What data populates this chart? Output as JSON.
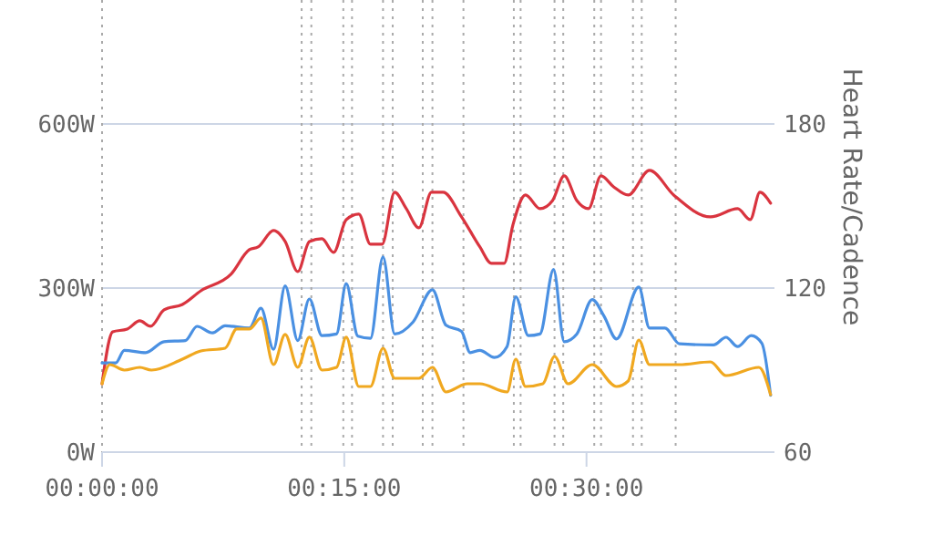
{
  "chart_data": {
    "type": "line",
    "y2label": "Heart Rate/Cadence",
    "xlim": [
      0,
      0.694
    ],
    "xticks": [
      {
        "value": 0,
        "label": "00:00:00"
      },
      {
        "value": 0.25,
        "label": "00:15:00"
      },
      {
        "value": 0.5,
        "label": "00:30:00"
      }
    ],
    "ylim": [
      0,
      826.7
    ],
    "yticks": [
      {
        "value": 0,
        "label": "0W"
      },
      {
        "value": 300,
        "label": "300W"
      },
      {
        "value": 600,
        "label": "600W"
      }
    ],
    "y2lim": [
      60,
      225.3
    ],
    "y2ticks": [
      60,
      120,
      180
    ],
    "grid": "y",
    "marker": "none",
    "line_style": "solid",
    "series": [
      {
        "color": "#d9343f",
        "axis": "y2",
        "x": [
          0,
          0.011,
          0.026,
          0.039,
          0.05,
          0.064,
          0.083,
          0.102,
          0.133,
          0.152,
          0.161,
          0.177,
          0.189,
          0.202,
          0.214,
          0.227,
          0.239,
          0.252,
          0.265,
          0.277,
          0.289,
          0.302,
          0.314,
          0.327,
          0.34,
          0.352,
          0.371,
          0.39,
          0.402,
          0.415,
          0.424,
          0.437,
          0.452,
          0.465,
          0.477,
          0.49,
          0.502,
          0.515,
          0.528,
          0.543,
          0.565,
          0.59,
          0.628,
          0.656,
          0.669,
          0.679,
          0.69
        ],
        "values": [
          85,
          104,
          105,
          108,
          106,
          112,
          114,
          119,
          125,
          134,
          135,
          141,
          137,
          126,
          137,
          138,
          133,
          145,
          147,
          136,
          136,
          155,
          149,
          142,
          155,
          155,
          146,
          135,
          129,
          129,
          143,
          154,
          149,
          152,
          161,
          152,
          149,
          161,
          157,
          154,
          163,
          154,
          146,
          149,
          145,
          155,
          151
        ]
      },
      {
        "color": "#4a90e2",
        "x": [
          0,
          0.014,
          0.023,
          0.045,
          0.064,
          0.086,
          0.098,
          0.114,
          0.127,
          0.152,
          0.164,
          0.177,
          0.189,
          0.202,
          0.214,
          0.227,
          0.242,
          0.252,
          0.264,
          0.277,
          0.29,
          0.302,
          0.321,
          0.341,
          0.355,
          0.371,
          0.38,
          0.39,
          0.405,
          0.418,
          0.427,
          0.44,
          0.452,
          0.466,
          0.477,
          0.49,
          0.506,
          0.518,
          0.531,
          0.554,
          0.565,
          0.581,
          0.596,
          0.631,
          0.644,
          0.656,
          0.67,
          0.681,
          0.69
        ],
        "values": [
          163,
          163,
          186,
          182,
          202,
          204,
          230,
          218,
          231,
          227,
          263,
          188,
          304,
          204,
          280,
          213,
          216,
          308,
          212,
          208,
          357,
          216,
          238,
          297,
          232,
          221,
          182,
          186,
          173,
          193,
          284,
          213,
          216,
          334,
          202,
          216,
          279,
          249,
          207,
          302,
          227,
          227,
          198,
          196,
          210,
          193,
          213,
          199,
          104
        ]
      },
      {
        "color": "#f0a820",
        "axis": "y2",
        "x": [
          0,
          0.008,
          0.023,
          0.039,
          0.051,
          0.083,
          0.102,
          0.127,
          0.139,
          0.152,
          0.164,
          0.177,
          0.189,
          0.202,
          0.214,
          0.227,
          0.242,
          0.252,
          0.265,
          0.277,
          0.29,
          0.302,
          0.327,
          0.341,
          0.355,
          0.377,
          0.39,
          0.418,
          0.427,
          0.437,
          0.455,
          0.467,
          0.481,
          0.506,
          0.531,
          0.543,
          0.554,
          0.565,
          0.596,
          0.628,
          0.644,
          0.678,
          0.69
        ],
        "values": [
          85,
          92,
          90,
          91,
          90,
          94,
          97,
          98,
          105,
          105,
          109,
          92,
          103,
          91,
          102,
          90,
          91,
          102,
          84,
          84,
          98,
          87,
          87,
          91,
          82,
          85,
          85,
          82,
          94,
          84,
          85,
          95,
          85,
          92,
          84,
          86,
          101,
          92,
          92,
          93,
          88,
          91,
          81
        ]
      }
    ],
    "ref_lines": [
      {
        "axis": "x",
        "value": 0,
        "color": "#aaaaaa",
        "line_style": "dotted"
      },
      {
        "axis": "x",
        "value": 0.206,
        "color": "#aaaaaa",
        "line_style": "dotted"
      },
      {
        "axis": "x",
        "value": 0.216,
        "color": "#aaaaaa",
        "line_style": "dotted"
      },
      {
        "axis": "x",
        "value": 0.249,
        "color": "#aaaaaa",
        "line_style": "dotted"
      },
      {
        "axis": "x",
        "value": 0.258,
        "color": "#aaaaaa",
        "line_style": "dotted"
      },
      {
        "axis": "x",
        "value": 0.29,
        "color": "#aaaaaa",
        "line_style": "dotted"
      },
      {
        "axis": "x",
        "value": 0.3,
        "color": "#aaaaaa",
        "line_style": "dotted"
      },
      {
        "axis": "x",
        "value": 0.331,
        "color": "#aaaaaa",
        "line_style": "dotted"
      },
      {
        "axis": "x",
        "value": 0.341,
        "color": "#aaaaaa",
        "line_style": "dotted"
      },
      {
        "axis": "x",
        "value": 0.373,
        "color": "#aaaaaa",
        "line_style": "dotted"
      },
      {
        "axis": "x",
        "value": 0.425,
        "color": "#aaaaaa",
        "line_style": "dotted"
      },
      {
        "axis": "x",
        "value": 0.432,
        "color": "#aaaaaa",
        "line_style": "dotted"
      },
      {
        "axis": "x",
        "value": 0.467,
        "color": "#aaaaaa",
        "line_style": "dotted"
      },
      {
        "axis": "x",
        "value": 0.476,
        "color": "#aaaaaa",
        "line_style": "dotted"
      },
      {
        "axis": "x",
        "value": 0.508,
        "color": "#aaaaaa",
        "line_style": "dotted"
      },
      {
        "axis": "x",
        "value": 0.515,
        "color": "#aaaaaa",
        "line_style": "dotted"
      },
      {
        "axis": "x",
        "value": 0.548,
        "color": "#aaaaaa",
        "line_style": "dotted"
      },
      {
        "axis": "x",
        "value": 0.557,
        "color": "#aaaaaa",
        "line_style": "dotted"
      },
      {
        "axis": "x",
        "value": 0.592,
        "color": "#aaaaaa",
        "line_style": "dotted"
      }
    ]
  }
}
